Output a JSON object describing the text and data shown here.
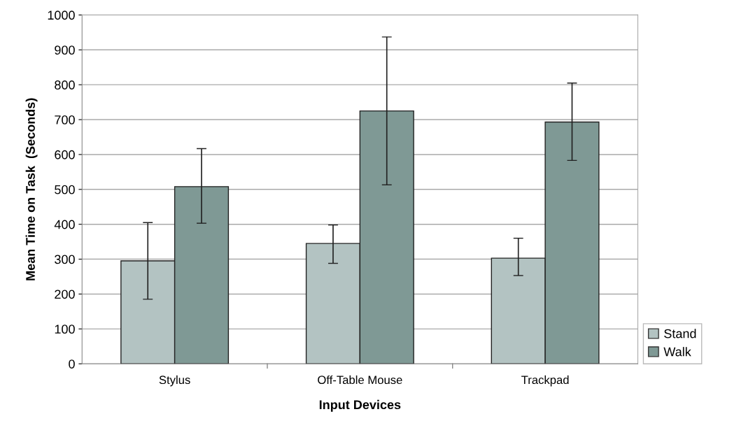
{
  "chart_data": {
    "type": "bar",
    "xlabel": "Input Devices",
    "ylabel": "Mean Time on Task  (Seconds)",
    "categories": [
      "Stylus",
      "Off-Table Mouse",
      "Trackpad"
    ],
    "series": [
      {
        "name": "Stand",
        "color": "#b3c3c2",
        "values": [
          295,
          345,
          303
        ],
        "errors": [
          [
            185,
            405
          ],
          [
            288,
            398
          ],
          [
            253,
            360
          ]
        ]
      },
      {
        "name": "Walk",
        "color": "#7f9995",
        "values": [
          508,
          725,
          693
        ],
        "errors": [
          [
            403,
            617
          ],
          [
            513,
            937
          ],
          [
            583,
            805
          ]
        ]
      }
    ],
    "ylim": [
      0,
      1000
    ],
    "yticks": [
      0,
      100,
      200,
      300,
      400,
      500,
      600,
      700,
      800,
      900,
      1000
    ],
    "grid": "y",
    "legend": "bottom right"
  }
}
